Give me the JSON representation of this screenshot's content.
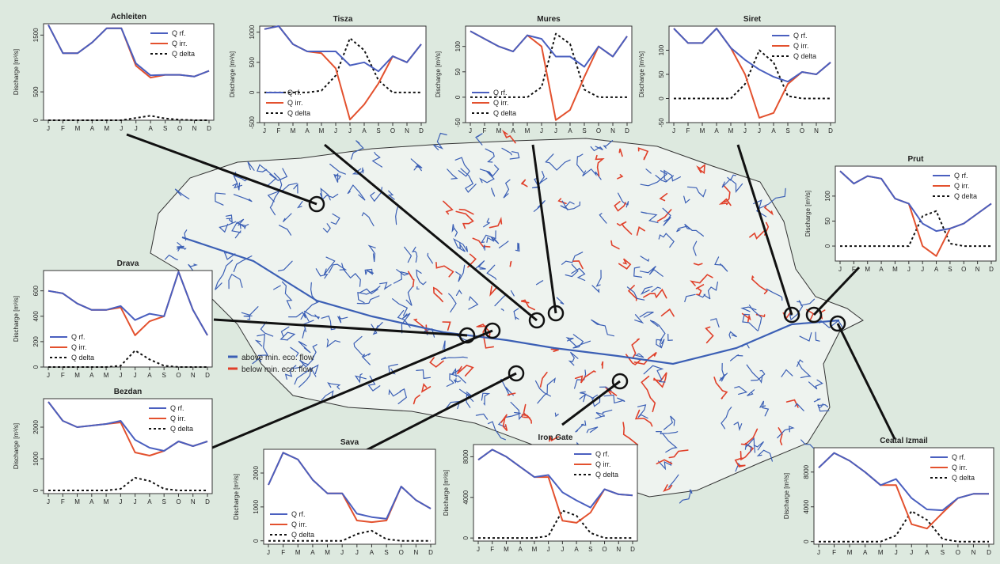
{
  "map_legend": {
    "above_label": "above min. eco. flow",
    "below_label": "below min. eco. flow",
    "above_color": "#3b5fb5",
    "below_color": "#e0402a"
  },
  "colors": {
    "rf": "#4a5fbf",
    "irr": "#e3512e",
    "delta": "#111111"
  },
  "chart_data": [
    {
      "type": "line",
      "title": "Achleiten",
      "ylabel": "Discharge [m³/s]",
      "categories": [
        "J",
        "F",
        "M",
        "A",
        "M",
        "J",
        "J",
        "A",
        "S",
        "O",
        "N",
        "D"
      ],
      "ylim": [
        0,
        1700
      ],
      "yticks": [
        "0",
        "500",
        "1500"
      ],
      "ytick_values": [
        0,
        500,
        1500
      ],
      "legend_position": "top-right",
      "series": [
        {
          "name": "Q rf.",
          "values": [
            1680,
            1180,
            1180,
            1370,
            1620,
            1620,
            1000,
            790,
            800,
            800,
            770,
            870
          ]
        },
        {
          "name": "Q irr.",
          "values": [
            1680,
            1180,
            1180,
            1370,
            1620,
            1620,
            960,
            750,
            800,
            800,
            770,
            870
          ]
        },
        {
          "name": "Q delta",
          "values": [
            0,
            0,
            0,
            0,
            0,
            0,
            40,
            80,
            30,
            10,
            0,
            0
          ]
        }
      ]
    },
    {
      "type": "line",
      "title": "Tisza",
      "ylabel": "Discharge [m³/s]",
      "categories": [
        "J",
        "F",
        "M",
        "A",
        "M",
        "J",
        "J",
        "A",
        "S",
        "O",
        "N",
        "D"
      ],
      "ylim": [
        -500,
        1100
      ],
      "yticks": [
        "-500",
        "0",
        "500",
        "1000"
      ],
      "ytick_values": [
        -500,
        0,
        500,
        1000
      ],
      "legend_position": "bottom-left",
      "series": [
        {
          "name": "Q rf.",
          "values": [
            1050,
            1100,
            800,
            680,
            680,
            680,
            450,
            500,
            350,
            600,
            500,
            800
          ]
        },
        {
          "name": "Q irr.",
          "values": [
            1050,
            1100,
            800,
            680,
            650,
            400,
            -450,
            -200,
            150,
            600,
            500,
            800
          ]
        },
        {
          "name": "Q delta",
          "values": [
            0,
            0,
            0,
            0,
            30,
            280,
            900,
            700,
            200,
            0,
            0,
            0
          ]
        }
      ]
    },
    {
      "type": "line",
      "title": "Mures",
      "ylabel": "Discharge [m³/s]",
      "categories": [
        "J",
        "F",
        "M",
        "A",
        "M",
        "J",
        "J",
        "A",
        "S",
        "O",
        "N",
        "D"
      ],
      "ylim": [
        -50,
        140
      ],
      "yticks": [
        "-50",
        "0",
        "50",
        "100"
      ],
      "ytick_values": [
        -50,
        0,
        50,
        100
      ],
      "legend_position": "bottom-left",
      "series": [
        {
          "name": "Q rf.",
          "values": [
            130,
            115,
            100,
            90,
            122,
            115,
            80,
            80,
            60,
            100,
            80,
            120
          ]
        },
        {
          "name": "Q irr.",
          "values": [
            130,
            115,
            100,
            90,
            122,
            100,
            -45,
            -25,
            40,
            100,
            80,
            120
          ]
        },
        {
          "name": "Q delta",
          "values": [
            0,
            0,
            0,
            0,
            0,
            20,
            125,
            105,
            15,
            0,
            0,
            0
          ]
        }
      ]
    },
    {
      "type": "line",
      "title": "Siret",
      "ylabel": "Discharge [m³/s]",
      "categories": [
        "J",
        "F",
        "M",
        "A",
        "M",
        "J",
        "J",
        "A",
        "S",
        "O",
        "N",
        "D"
      ],
      "ylim": [
        -50,
        150
      ],
      "yticks": [
        "-50",
        "0",
        "50",
        "100"
      ],
      "ytick_values": [
        -50,
        0,
        50,
        100
      ],
      "legend_position": "top-right",
      "series": [
        {
          "name": "Q rf.",
          "values": [
            145,
            115,
            115,
            145,
            105,
            80,
            60,
            45,
            35,
            55,
            50,
            75
          ]
        },
        {
          "name": "Q irr.",
          "values": [
            145,
            115,
            115,
            145,
            105,
            50,
            -40,
            -30,
            30,
            55,
            50,
            75
          ]
        },
        {
          "name": "Q delta",
          "values": [
            0,
            0,
            0,
            0,
            0,
            30,
            100,
            75,
            5,
            0,
            0,
            0
          ]
        }
      ]
    },
    {
      "type": "line",
      "title": "Prut",
      "ylabel": "Discharge [m³/s]",
      "categories": [
        "J",
        "F",
        "M",
        "A",
        "M",
        "J",
        "J",
        "A",
        "S",
        "O",
        "N",
        "D"
      ],
      "ylim": [
        -30,
        160
      ],
      "yticks": [
        "0",
        "50",
        "100"
      ],
      "ytick_values": [
        0,
        50,
        100
      ],
      "legend_position": "top-right",
      "series": [
        {
          "name": "Q rf.",
          "values": [
            150,
            125,
            140,
            135,
            95,
            85,
            45,
            30,
            35,
            45,
            65,
            85
          ]
        },
        {
          "name": "Q irr.",
          "values": [
            150,
            125,
            140,
            135,
            95,
            85,
            0,
            -20,
            35,
            45,
            65,
            85
          ]
        },
        {
          "name": "Q delta",
          "values": [
            0,
            0,
            0,
            0,
            0,
            0,
            60,
            70,
            5,
            0,
            0,
            0
          ]
        }
      ]
    },
    {
      "type": "line",
      "title": "Drava",
      "ylabel": "Discharge [m³/s]",
      "categories": [
        "J",
        "F",
        "M",
        "A",
        "M",
        "J",
        "J",
        "A",
        "S",
        "O",
        "N",
        "D"
      ],
      "ylim": [
        0,
        760
      ],
      "yticks": [
        "0",
        "200",
        "400",
        "600"
      ],
      "ytick_values": [
        0,
        200,
        400,
        600
      ],
      "legend_position": "bottom-left",
      "series": [
        {
          "name": "Q rf.",
          "values": [
            600,
            580,
            500,
            450,
            450,
            480,
            370,
            420,
            400,
            750,
            450,
            250
          ]
        },
        {
          "name": "Q irr.",
          "values": [
            600,
            580,
            500,
            450,
            450,
            470,
            250,
            360,
            400,
            750,
            450,
            250
          ]
        },
        {
          "name": "Q delta",
          "values": [
            0,
            0,
            0,
            0,
            0,
            10,
            130,
            60,
            10,
            0,
            0,
            0
          ]
        }
      ]
    },
    {
      "type": "line",
      "title": "Bezdan",
      "ylabel": "Discharge [m³/s]",
      "categories": [
        "J",
        "F",
        "M",
        "A",
        "M",
        "J",
        "J",
        "A",
        "S",
        "O",
        "N",
        "D"
      ],
      "ylim": [
        -100,
        2900
      ],
      "yticks": [
        "0",
        "1000",
        "2000"
      ],
      "ytick_values": [
        0,
        1000,
        2000
      ],
      "legend_position": "top-right",
      "series": [
        {
          "name": "Q rf.",
          "values": [
            2800,
            2200,
            2000,
            2050,
            2100,
            2200,
            1600,
            1350,
            1250,
            1550,
            1400,
            1550
          ]
        },
        {
          "name": "Q irr.",
          "values": [
            2800,
            2200,
            2000,
            2050,
            2100,
            2150,
            1200,
            1100,
            1250,
            1550,
            1400,
            1550
          ]
        },
        {
          "name": "Q delta",
          "values": [
            0,
            0,
            0,
            0,
            0,
            50,
            400,
            300,
            50,
            0,
            0,
            0
          ]
        }
      ]
    },
    {
      "type": "line",
      "title": "Sava",
      "ylabel": "Discharge [m³/s]",
      "categories": [
        "J",
        "F",
        "M",
        "A",
        "M",
        "J",
        "J",
        "A",
        "S",
        "O",
        "N",
        "D"
      ],
      "ylim": [
        -100,
        2700
      ],
      "yticks": [
        "0",
        "1000",
        "2000"
      ],
      "ytick_values": [
        0,
        1000,
        2000
      ],
      "legend_position": "bottom-left",
      "series": [
        {
          "name": "Q rf.",
          "values": [
            1650,
            2600,
            2400,
            1800,
            1400,
            1400,
            800,
            700,
            650,
            1600,
            1200,
            950
          ]
        },
        {
          "name": "Q irr.",
          "values": [
            1650,
            2600,
            2400,
            1800,
            1400,
            1400,
            600,
            550,
            600,
            1600,
            1200,
            950
          ]
        },
        {
          "name": "Q delta",
          "values": [
            0,
            0,
            0,
            0,
            0,
            0,
            200,
            300,
            50,
            0,
            0,
            0
          ]
        }
      ]
    },
    {
      "type": "line",
      "title": "Iron Gate",
      "ylabel": "Discharge [m³/s]",
      "categories": [
        "J",
        "F",
        "M",
        "A",
        "M",
        "J",
        "J",
        "A",
        "S",
        "O",
        "N",
        "D"
      ],
      "ylim": [
        -300,
        9200
      ],
      "yticks": [
        "0",
        "4000",
        "8000"
      ],
      "ytick_values": [
        0,
        4000,
        8000
      ],
      "legend_position": "top-right",
      "series": [
        {
          "name": "Q rf.",
          "values": [
            7700,
            8700,
            8000,
            7000,
            6000,
            6200,
            4500,
            3700,
            3000,
            4800,
            4300,
            4200
          ]
        },
        {
          "name": "Q irr.",
          "values": [
            7700,
            8700,
            8000,
            7000,
            6000,
            6000,
            1700,
            1500,
            2500,
            4800,
            4300,
            4200
          ]
        },
        {
          "name": "Q delta",
          "values": [
            0,
            0,
            0,
            0,
            0,
            200,
            2700,
            2200,
            500,
            0,
            0,
            0
          ]
        }
      ]
    },
    {
      "type": "line",
      "title": "Ceatal Izmail",
      "ylabel": "Discharge [m³/s]",
      "categories": [
        "J",
        "F",
        "M",
        "A",
        "M",
        "J",
        "J",
        "A",
        "S",
        "O",
        "N",
        "D"
      ],
      "ylim": [
        -300,
        10800
      ],
      "yticks": [
        "0",
        "4000",
        "8000"
      ],
      "ytick_values": [
        0,
        4000,
        8000
      ],
      "legend_position": "top-right",
      "series": [
        {
          "name": "Q rf.",
          "values": [
            8500,
            10200,
            9300,
            8000,
            6500,
            7200,
            5000,
            3700,
            3600,
            5000,
            5500,
            5500
          ]
        },
        {
          "name": "Q irr.",
          "values": [
            8500,
            10200,
            9300,
            8000,
            6500,
            6500,
            2000,
            1500,
            3300,
            5000,
            5500,
            5500
          ]
        },
        {
          "name": "Q delta",
          "values": [
            0,
            0,
            0,
            0,
            0,
            700,
            3500,
            2500,
            300,
            0,
            0,
            0
          ]
        }
      ]
    }
  ]
}
